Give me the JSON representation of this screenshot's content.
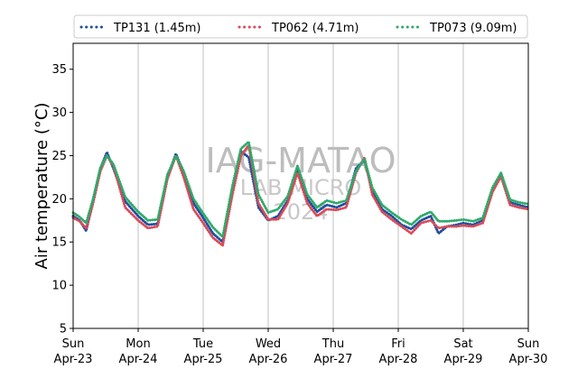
{
  "chart_data": {
    "type": "line",
    "style": "dotted",
    "ylabel": "Air temperature (°C)",
    "xlabel": "",
    "ylim": [
      5,
      38
    ],
    "yticks": [
      5,
      10,
      15,
      20,
      25,
      30,
      35
    ],
    "xlim": [
      0,
      7
    ],
    "xgrid": true,
    "ygrid": false,
    "legend_position": "top, above plot",
    "xticks": [
      {
        "day": "Sun",
        "date": "Apr-23",
        "x": 0
      },
      {
        "day": "Mon",
        "date": "Apr-24",
        "x": 1
      },
      {
        "day": "Tue",
        "date": "Apr-25",
        "x": 2
      },
      {
        "day": "Wed",
        "date": "Apr-26",
        "x": 3
      },
      {
        "day": "Thu",
        "date": "Apr-27",
        "x": 4
      },
      {
        "day": "Fri",
        "date": "Apr-28",
        "x": 5
      },
      {
        "day": "Sat",
        "date": "Apr-29",
        "x": 6
      },
      {
        "day": "Sun",
        "date": "Apr-30",
        "x": 7
      }
    ],
    "watermark": [
      "IAG-MATAO",
      "LAB MICRO",
      "2024"
    ],
    "series": [
      {
        "name": "TP131 (1.45m)",
        "color": "#1f4e9e",
        "points": [
          [
            0,
            18.0
          ],
          [
            0.1,
            17.5
          ],
          [
            0.2,
            16.3
          ],
          [
            0.3,
            19.5
          ],
          [
            0.42,
            23.5
          ],
          [
            0.52,
            25.4
          ],
          [
            0.62,
            23.5
          ],
          [
            0.8,
            19.7
          ],
          [
            1.0,
            18.0
          ],
          [
            1.15,
            17.0
          ],
          [
            1.3,
            17.1
          ],
          [
            1.45,
            22.5
          ],
          [
            1.58,
            25.2
          ],
          [
            1.7,
            23.0
          ],
          [
            1.85,
            19.5
          ],
          [
            2.0,
            17.8
          ],
          [
            2.15,
            16.0
          ],
          [
            2.3,
            15.0
          ],
          [
            2.45,
            21.0
          ],
          [
            2.58,
            25.5
          ],
          [
            2.7,
            24.8
          ],
          [
            2.85,
            19.0
          ],
          [
            3.0,
            17.5
          ],
          [
            3.15,
            18.0
          ],
          [
            3.3,
            19.8
          ],
          [
            3.45,
            23.5
          ],
          [
            3.6,
            20.0
          ],
          [
            3.75,
            18.5
          ],
          [
            3.9,
            19.3
          ],
          [
            4.05,
            19.0
          ],
          [
            4.2,
            19.5
          ],
          [
            4.35,
            23.5
          ],
          [
            4.48,
            24.5
          ],
          [
            4.6,
            21.0
          ],
          [
            4.75,
            18.8
          ],
          [
            4.9,
            18.0
          ],
          [
            5.05,
            17.0
          ],
          [
            5.2,
            16.5
          ],
          [
            5.35,
            17.5
          ],
          [
            5.5,
            18.0
          ],
          [
            5.62,
            16.0
          ],
          [
            5.75,
            16.8
          ],
          [
            5.9,
            17.0
          ],
          [
            6.0,
            17.2
          ],
          [
            6.15,
            17.0
          ],
          [
            6.3,
            17.5
          ],
          [
            6.45,
            21.0
          ],
          [
            6.58,
            22.8
          ],
          [
            6.72,
            19.6
          ],
          [
            6.85,
            19.3
          ],
          [
            7.0,
            19.0
          ]
        ]
      },
      {
        "name": "TP062 (4.71m)",
        "color": "#d94a57",
        "points": [
          [
            0,
            17.8
          ],
          [
            0.1,
            17.4
          ],
          [
            0.2,
            16.6
          ],
          [
            0.3,
            19.3
          ],
          [
            0.42,
            23.2
          ],
          [
            0.52,
            25.0
          ],
          [
            0.62,
            23.8
          ],
          [
            0.8,
            19.0
          ],
          [
            1.0,
            17.5
          ],
          [
            1.15,
            16.6
          ],
          [
            1.3,
            16.8
          ],
          [
            1.45,
            22.3
          ],
          [
            1.58,
            25.0
          ],
          [
            1.7,
            22.5
          ],
          [
            1.85,
            18.8
          ],
          [
            2.0,
            17.2
          ],
          [
            2.15,
            15.5
          ],
          [
            2.3,
            14.6
          ],
          [
            2.45,
            20.5
          ],
          [
            2.58,
            25.0
          ],
          [
            2.7,
            26.2
          ],
          [
            2.85,
            19.5
          ],
          [
            3.0,
            17.6
          ],
          [
            3.15,
            17.6
          ],
          [
            3.3,
            19.5
          ],
          [
            3.45,
            23.0
          ],
          [
            3.6,
            19.5
          ],
          [
            3.75,
            18.0
          ],
          [
            3.9,
            18.8
          ],
          [
            4.05,
            18.7
          ],
          [
            4.2,
            19.0
          ],
          [
            4.35,
            23.0
          ],
          [
            4.48,
            24.8
          ],
          [
            4.6,
            20.5
          ],
          [
            4.75,
            18.5
          ],
          [
            4.9,
            17.6
          ],
          [
            5.05,
            16.8
          ],
          [
            5.2,
            16.0
          ],
          [
            5.35,
            17.2
          ],
          [
            5.5,
            17.5
          ],
          [
            5.62,
            16.6
          ],
          [
            5.75,
            16.8
          ],
          [
            5.9,
            16.8
          ],
          [
            6.0,
            16.9
          ],
          [
            6.15,
            16.8
          ],
          [
            6.3,
            17.2
          ],
          [
            6.45,
            20.8
          ],
          [
            6.58,
            22.6
          ],
          [
            6.72,
            19.3
          ],
          [
            6.85,
            19.0
          ],
          [
            7.0,
            18.8
          ]
        ]
      },
      {
        "name": "TP073 (9.09m)",
        "color": "#2eaa6a",
        "points": [
          [
            0,
            18.4
          ],
          [
            0.1,
            17.9
          ],
          [
            0.2,
            17.2
          ],
          [
            0.3,
            19.8
          ],
          [
            0.42,
            23.6
          ],
          [
            0.52,
            25.0
          ],
          [
            0.62,
            24.0
          ],
          [
            0.8,
            20.2
          ],
          [
            1.0,
            18.5
          ],
          [
            1.15,
            17.5
          ],
          [
            1.3,
            17.6
          ],
          [
            1.45,
            22.8
          ],
          [
            1.58,
            25.0
          ],
          [
            1.7,
            23.2
          ],
          [
            1.85,
            20.0
          ],
          [
            2.0,
            18.3
          ],
          [
            2.15,
            16.7
          ],
          [
            2.3,
            15.6
          ],
          [
            2.45,
            21.5
          ],
          [
            2.58,
            25.8
          ],
          [
            2.7,
            26.6
          ],
          [
            2.85,
            20.5
          ],
          [
            3.0,
            18.4
          ],
          [
            3.15,
            18.8
          ],
          [
            3.3,
            20.3
          ],
          [
            3.45,
            23.8
          ],
          [
            3.6,
            20.5
          ],
          [
            3.75,
            19.0
          ],
          [
            3.9,
            19.8
          ],
          [
            4.05,
            19.5
          ],
          [
            4.2,
            19.8
          ],
          [
            4.35,
            23.2
          ],
          [
            4.48,
            24.6
          ],
          [
            4.6,
            21.3
          ],
          [
            4.75,
            19.3
          ],
          [
            4.9,
            18.4
          ],
          [
            5.05,
            17.6
          ],
          [
            5.2,
            17.0
          ],
          [
            5.35,
            18.0
          ],
          [
            5.5,
            18.5
          ],
          [
            5.62,
            17.4
          ],
          [
            5.75,
            17.4
          ],
          [
            5.9,
            17.5
          ],
          [
            6.0,
            17.6
          ],
          [
            6.15,
            17.4
          ],
          [
            6.3,
            17.8
          ],
          [
            6.45,
            21.3
          ],
          [
            6.58,
            23.0
          ],
          [
            6.72,
            19.9
          ],
          [
            6.85,
            19.6
          ],
          [
            7.0,
            19.4
          ]
        ]
      }
    ]
  }
}
